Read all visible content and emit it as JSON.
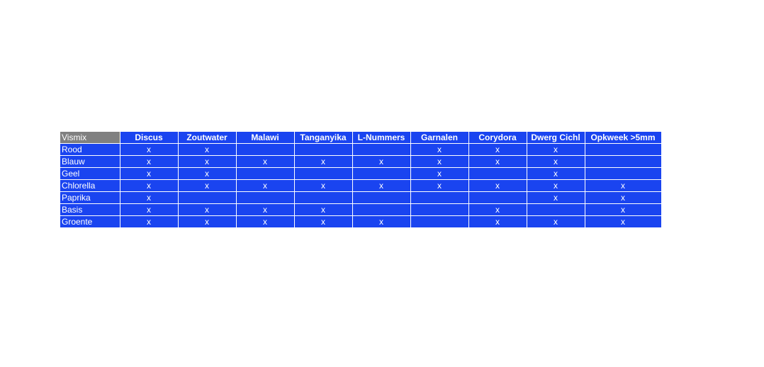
{
  "table": {
    "corner": "Vismix",
    "columns": [
      "Discus",
      "Zoutwater",
      "Malawi",
      "Tanganyika",
      "L-Nummers",
      "Garnalen",
      "Corydora",
      "Dwerg Cichl",
      "Opkweek >5mm"
    ],
    "rows": [
      {
        "label": "Rood",
        "cells": [
          "x",
          "x",
          "",
          "",
          "",
          "x",
          "x",
          "x",
          ""
        ]
      },
      {
        "label": "Blauw",
        "cells": [
          "x",
          "x",
          "x",
          "x",
          "x",
          "x",
          "x",
          "x",
          ""
        ]
      },
      {
        "label": "Geel",
        "cells": [
          "x",
          "x",
          "",
          "",
          "",
          "x",
          "",
          "x",
          ""
        ]
      },
      {
        "label": "Chlorella",
        "cells": [
          "x",
          "x",
          "x",
          "x",
          "x",
          "x",
          "x",
          "x",
          "x"
        ]
      },
      {
        "label": "Paprika",
        "cells": [
          "x",
          "",
          "",
          "",
          "",
          "",
          "",
          "x",
          "x"
        ]
      },
      {
        "label": "Basis",
        "cells": [
          "x",
          "x",
          "x",
          "x",
          "",
          "",
          "x",
          "",
          "x"
        ]
      },
      {
        "label": "Groente",
        "cells": [
          "x",
          "x",
          "x",
          "x",
          "x",
          "",
          "x",
          "x",
          "x"
        ]
      }
    ]
  },
  "colors": {
    "cell_bg": "#1a44f0",
    "corner_bg": "#808080",
    "text": "#ffffff"
  }
}
